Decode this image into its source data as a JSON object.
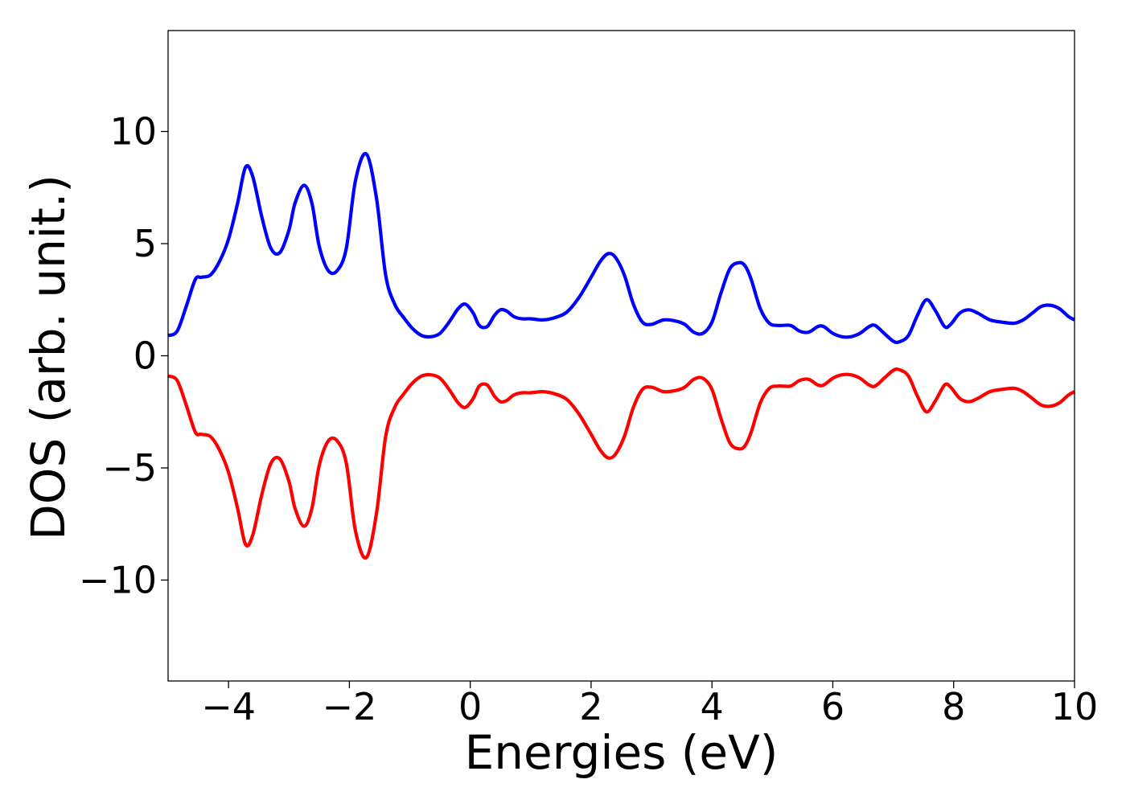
{
  "chart_data": {
    "type": "line",
    "title": "",
    "xlabel": "Energies (eV)",
    "ylabel": "DOS (arb. unit.)",
    "xlim": [
      -5,
      10
    ],
    "ylim": [
      -14.5,
      14.5
    ],
    "xticks": [
      -4,
      -2,
      0,
      2,
      4,
      6,
      8,
      10
    ],
    "xtick_labels": [
      "−4",
      "−2",
      "0",
      "2",
      "4",
      "6",
      "8",
      "10"
    ],
    "yticks": [
      -10,
      -5,
      0,
      5,
      10
    ],
    "ytick_labels": [
      "−10",
      "−5",
      "0",
      "5",
      "10"
    ],
    "grid": false,
    "legend": "none",
    "series": [
      {
        "color": "#0000ff",
        "x": [
          -5.0,
          -4.85,
          -4.7,
          -4.55,
          -4.45,
          -4.3,
          -4.15,
          -4.0,
          -3.85,
          -3.72,
          -3.6,
          -3.45,
          -3.3,
          -3.15,
          -3.0,
          -2.9,
          -2.75,
          -2.62,
          -2.5,
          -2.35,
          -2.2,
          -2.05,
          -1.9,
          -1.72,
          -1.55,
          -1.4,
          -1.25,
          -1.1,
          -0.95,
          -0.8,
          -0.65,
          -0.5,
          -0.35,
          -0.2,
          -0.08,
          0.05,
          0.15,
          0.28,
          0.4,
          0.5,
          0.6,
          0.72,
          0.85,
          1.0,
          1.2,
          1.4,
          1.6,
          1.8,
          2.0,
          2.15,
          2.28,
          2.4,
          2.55,
          2.7,
          2.85,
          3.0,
          3.2,
          3.4,
          3.55,
          3.7,
          3.85,
          4.0,
          4.15,
          4.3,
          4.45,
          4.55,
          4.65,
          4.8,
          4.95,
          5.1,
          5.3,
          5.45,
          5.6,
          5.75,
          5.85,
          6.0,
          6.15,
          6.3,
          6.45,
          6.6,
          6.7,
          6.85,
          7.0,
          7.1,
          7.25,
          7.4,
          7.55,
          7.7,
          7.85,
          7.95,
          8.1,
          8.25,
          8.4,
          8.6,
          8.8,
          9.0,
          9.15,
          9.3,
          9.45,
          9.6,
          9.75,
          9.9,
          10.0
        ],
        "y": [
          0.9,
          1.1,
          2.2,
          3.4,
          3.5,
          3.6,
          4.2,
          5.2,
          6.8,
          8.4,
          8.0,
          6.2,
          4.8,
          4.6,
          5.6,
          6.8,
          7.6,
          6.8,
          4.9,
          3.8,
          3.8,
          4.8,
          7.8,
          9.0,
          7.0,
          3.6,
          2.3,
          1.7,
          1.2,
          0.9,
          0.85,
          1.0,
          1.5,
          2.1,
          2.3,
          1.9,
          1.35,
          1.3,
          1.8,
          2.05,
          2.0,
          1.75,
          1.65,
          1.65,
          1.6,
          1.7,
          1.95,
          2.6,
          3.5,
          4.2,
          4.55,
          4.4,
          3.6,
          2.3,
          1.5,
          1.4,
          1.6,
          1.55,
          1.4,
          1.05,
          1.0,
          1.5,
          2.8,
          3.9,
          4.15,
          4.0,
          3.4,
          2.1,
          1.45,
          1.35,
          1.35,
          1.1,
          1.05,
          1.3,
          1.3,
          1.0,
          0.85,
          0.85,
          1.0,
          1.3,
          1.35,
          1.0,
          0.65,
          0.62,
          0.9,
          1.8,
          2.5,
          2.0,
          1.3,
          1.4,
          1.9,
          2.05,
          1.9,
          1.6,
          1.5,
          1.45,
          1.6,
          1.9,
          2.2,
          2.25,
          2.1,
          1.75,
          1.6
        ]
      },
      {
        "color": "#ff0000",
        "x": [
          -5.0,
          -4.85,
          -4.7,
          -4.55,
          -4.45,
          -4.3,
          -4.15,
          -4.0,
          -3.85,
          -3.72,
          -3.6,
          -3.45,
          -3.3,
          -3.15,
          -3.0,
          -2.9,
          -2.75,
          -2.62,
          -2.5,
          -2.35,
          -2.2,
          -2.05,
          -1.9,
          -1.72,
          -1.55,
          -1.4,
          -1.25,
          -1.1,
          -0.95,
          -0.8,
          -0.65,
          -0.5,
          -0.35,
          -0.2,
          -0.08,
          0.05,
          0.15,
          0.28,
          0.4,
          0.5,
          0.6,
          0.72,
          0.85,
          1.0,
          1.2,
          1.4,
          1.6,
          1.8,
          2.0,
          2.15,
          2.28,
          2.4,
          2.55,
          2.7,
          2.85,
          3.0,
          3.2,
          3.4,
          3.55,
          3.7,
          3.85,
          4.0,
          4.15,
          4.3,
          4.45,
          4.55,
          4.65,
          4.8,
          4.95,
          5.1,
          5.3,
          5.45,
          5.6,
          5.75,
          5.85,
          6.0,
          6.15,
          6.3,
          6.45,
          6.6,
          6.7,
          6.85,
          7.0,
          7.1,
          7.25,
          7.4,
          7.55,
          7.7,
          7.85,
          7.95,
          8.1,
          8.25,
          8.4,
          8.6,
          8.8,
          9.0,
          9.15,
          9.3,
          9.45,
          9.6,
          9.75,
          9.9,
          10.0
        ],
        "y": [
          -0.9,
          -1.1,
          -2.2,
          -3.4,
          -3.5,
          -3.6,
          -4.2,
          -5.2,
          -6.8,
          -8.4,
          -8.0,
          -6.2,
          -4.8,
          -4.6,
          -5.6,
          -6.8,
          -7.6,
          -6.8,
          -4.9,
          -3.8,
          -3.8,
          -4.8,
          -7.8,
          -9.0,
          -7.0,
          -3.6,
          -2.3,
          -1.7,
          -1.2,
          -0.9,
          -0.85,
          -1.0,
          -1.5,
          -2.1,
          -2.3,
          -1.9,
          -1.35,
          -1.3,
          -1.8,
          -2.05,
          -2.0,
          -1.75,
          -1.65,
          -1.65,
          -1.6,
          -1.7,
          -1.95,
          -2.6,
          -3.5,
          -4.2,
          -4.55,
          -4.4,
          -3.6,
          -2.3,
          -1.5,
          -1.4,
          -1.6,
          -1.55,
          -1.4,
          -1.05,
          -1.0,
          -1.5,
          -2.8,
          -3.9,
          -4.15,
          -4.0,
          -3.4,
          -2.1,
          -1.45,
          -1.35,
          -1.35,
          -1.1,
          -1.05,
          -1.3,
          -1.3,
          -1.0,
          -0.85,
          -0.85,
          -1.0,
          -1.3,
          -1.35,
          -1.0,
          -0.65,
          -0.62,
          -0.9,
          -1.8,
          -2.5,
          -2.0,
          -1.3,
          -1.4,
          -1.9,
          -2.05,
          -1.9,
          -1.6,
          -1.5,
          -1.45,
          -1.6,
          -1.9,
          -2.2,
          -2.25,
          -2.1,
          -1.75,
          -1.6
        ]
      }
    ]
  }
}
